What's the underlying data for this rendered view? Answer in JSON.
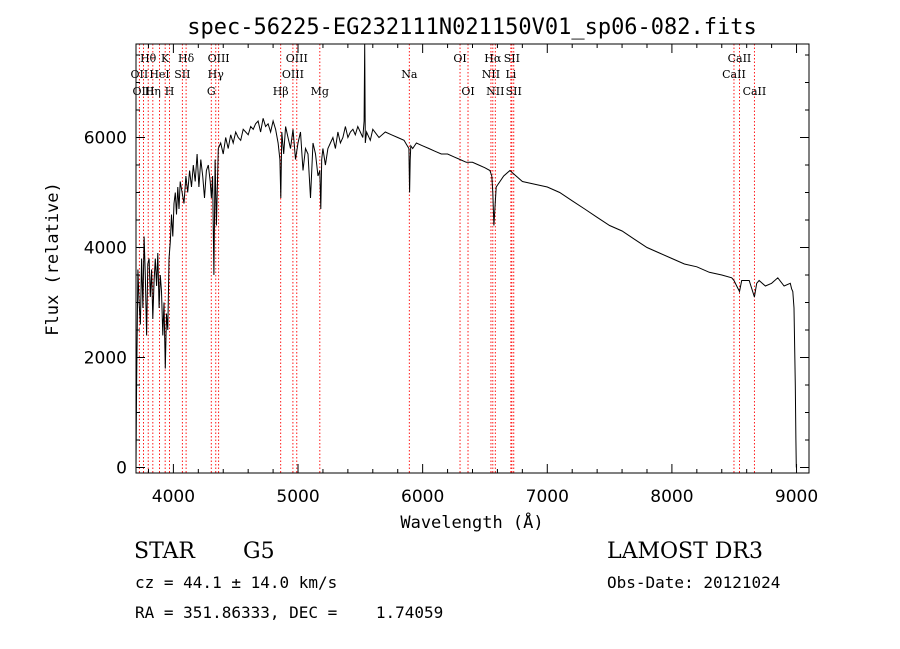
{
  "chart_data": {
    "type": "line",
    "title": "spec-56225-EG232111N021150V01_sp06-082.fits",
    "xlabel": "Wavelength (Å)",
    "ylabel": "Flux (relative)",
    "xlim": [
      3700,
      9100
    ],
    "ylim": [
      -100,
      7700
    ],
    "x_ticks": [
      4000,
      5000,
      6000,
      7000,
      8000,
      9000
    ],
    "x_tick_labels": [
      "4000",
      "5000",
      "6000",
      "7000",
      "8000",
      "9000"
    ],
    "y_ticks": [
      0,
      2000,
      4000,
      6000
    ],
    "y_tick_labels": [
      "0",
      "2000",
      "4000",
      "6000"
    ],
    "series": [
      {
        "name": "flux",
        "x": [
          3700,
          3705,
          3715,
          3725,
          3735,
          3745,
          3755,
          3765,
          3775,
          3785,
          3795,
          3805,
          3815,
          3825,
          3835,
          3845,
          3855,
          3865,
          3875,
          3885,
          3895,
          3905,
          3915,
          3925,
          3935,
          3945,
          3955,
          3965,
          3975,
          3985,
          3995,
          4005,
          4015,
          4025,
          4035,
          4045,
          4055,
          4070,
          4085,
          4100,
          4115,
          4130,
          4145,
          4160,
          4175,
          4190,
          4205,
          4220,
          4235,
          4250,
          4265,
          4280,
          4295,
          4305,
          4315,
          4325,
          4335,
          4345,
          4360,
          4380,
          4400,
          4420,
          4440,
          4460,
          4480,
          4500,
          4520,
          4540,
          4560,
          4580,
          4600,
          4620,
          4640,
          4660,
          4680,
          4700,
          4720,
          4740,
          4760,
          4780,
          4800,
          4820,
          4840,
          4855,
          4862,
          4870,
          4885,
          4900,
          4920,
          4940,
          4960,
          4980,
          5000,
          5020,
          5040,
          5060,
          5080,
          5100,
          5120,
          5140,
          5160,
          5175,
          5183,
          5190,
          5200,
          5220,
          5240,
          5260,
          5280,
          5300,
          5320,
          5340,
          5360,
          5380,
          5400,
          5420,
          5440,
          5460,
          5480,
          5500,
          5520,
          5530,
          5535,
          5540,
          5550,
          5560,
          5580,
          5600,
          5650,
          5700,
          5750,
          5800,
          5850,
          5890,
          5895,
          5900,
          5905,
          5920,
          5950,
          6000,
          6050,
          6100,
          6150,
          6200,
          6250,
          6300,
          6350,
          6400,
          6450,
          6500,
          6540,
          6555,
          6563,
          6572,
          6590,
          6650,
          6700,
          6750,
          6800,
          6900,
          7000,
          7100,
          7200,
          7300,
          7400,
          7500,
          7600,
          7700,
          7800,
          7900,
          8000,
          8100,
          8200,
          8300,
          8400,
          8480,
          8498,
          8520,
          8542,
          8560,
          8620,
          8662,
          8680,
          8700,
          8750,
          8800,
          8850,
          8900,
          8950,
          8960,
          8970,
          8980,
          8990,
          8995,
          8998
        ],
        "y": [
          0,
          1500,
          3600,
          3000,
          2600,
          3800,
          2900,
          4200,
          3500,
          2400,
          3700,
          3800,
          3100,
          3600,
          2700,
          3400,
          3800,
          3300,
          3900,
          2900,
          3500,
          3200,
          2400,
          3000,
          1800,
          2800,
          2500,
          3800,
          4100,
          4600,
          4200,
          4800,
          5000,
          4600,
          5100,
          4700,
          5200,
          5000,
          4800,
          5300,
          5000,
          5400,
          5100,
          5500,
          5200,
          5700,
          5100,
          5600,
          5300,
          4900,
          5400,
          5500,
          5200,
          4900,
          5300,
          3500,
          5600,
          4400,
          5800,
          5900,
          5700,
          6000,
          5800,
          6050,
          5900,
          6100,
          6000,
          5950,
          6150,
          6100,
          6050,
          6200,
          6150,
          6250,
          6300,
          6100,
          6350,
          6200,
          6250,
          6100,
          6300,
          6150,
          5900,
          5600,
          4900,
          6100,
          5700,
          6200,
          6000,
          5800,
          6150,
          5600,
          5900,
          6100,
          5400,
          5800,
          5700,
          4900,
          5900,
          5700,
          5300,
          5400,
          4700,
          5600,
          5800,
          5500,
          5800,
          5900,
          6000,
          5800,
          6100,
          5900,
          6000,
          6200,
          6000,
          6100,
          6150,
          6050,
          6200,
          6100,
          6000,
          6300,
          7700,
          5900,
          6100,
          6050,
          5950,
          6150,
          6000,
          6100,
          6050,
          6000,
          5950,
          5800,
          5000,
          5600,
          5850,
          5800,
          5900,
          5850,
          5800,
          5750,
          5700,
          5700,
          5650,
          5600,
          5550,
          5550,
          5500,
          5450,
          5400,
          5300,
          5000,
          4400,
          5100,
          5300,
          5400,
          5300,
          5200,
          5150,
          5100,
          5000,
          4850,
          4700,
          4550,
          4400,
          4300,
          4150,
          4000,
          3900,
          3800,
          3700,
          3650,
          3550,
          3500,
          3450,
          3400,
          3300,
          3200,
          3400,
          3400,
          3100,
          3350,
          3400,
          3300,
          3350,
          3450,
          3300,
          3350,
          3250,
          3200,
          2900,
          1500,
          500,
          0
        ]
      }
    ],
    "lines": [
      {
        "label": "Hθ",
        "wavelength": 3798,
        "row": 1
      },
      {
        "label": "OII",
        "wavelength": 3727,
        "row": 2
      },
      {
        "label": "OIII",
        "wavelength": 3760,
        "row": 3
      },
      {
        "label": "Hη",
        "wavelength": 3835,
        "row": 3
      },
      {
        "label": "K",
        "wavelength": 3934,
        "row": 1
      },
      {
        "label": "HeI",
        "wavelength": 3889,
        "row": 2
      },
      {
        "label": "H",
        "wavelength": 3969,
        "row": 3
      },
      {
        "label": "Hδ",
        "wavelength": 4102,
        "row": 1
      },
      {
        "label": "SII",
        "wavelength": 4072,
        "row": 2
      },
      {
        "label": "OIII",
        "wavelength": 4363,
        "row": 1
      },
      {
        "label": "Hγ",
        "wavelength": 4340,
        "row": 2
      },
      {
        "label": "G",
        "wavelength": 4304,
        "row": 3
      },
      {
        "label": "OIII",
        "wavelength": 4990,
        "row": 1
      },
      {
        "label": "OIII",
        "wavelength": 4959,
        "row": 2
      },
      {
        "label": "Hβ",
        "wavelength": 4861,
        "row": 3
      },
      {
        "label": "Mg",
        "wavelength": 5175,
        "row": 3
      },
      {
        "label": "Na",
        "wavelength": 5893,
        "row": 2
      },
      {
        "label": "OI",
        "wavelength": 6300,
        "row": 1
      },
      {
        "label": "OI",
        "wavelength": 6364,
        "row": 3
      },
      {
        "label": "Hα",
        "wavelength": 6563,
        "row": 1
      },
      {
        "label": "SII",
        "wavelength": 6716,
        "row": 1
      },
      {
        "label": "NII",
        "wavelength": 6548,
        "row": 2
      },
      {
        "label": "Li",
        "wavelength": 6708,
        "row": 2
      },
      {
        "label": "NII",
        "wavelength": 6583,
        "row": 3
      },
      {
        "label": "SII",
        "wavelength": 6731,
        "row": 3
      },
      {
        "label": "CaII",
        "wavelength": 8542,
        "row": 1
      },
      {
        "label": "CaII",
        "wavelength": 8498,
        "row": 2
      },
      {
        "label": "CaII",
        "wavelength": 8662,
        "row": 3
      }
    ]
  },
  "info": {
    "class": "STAR",
    "subclass": "G5",
    "survey": "LAMOST DR3",
    "cz": "cz = 44.1 ± 14.0 km/s",
    "obs_date": "Obs-Date: 20121024",
    "coords": "RA = 351.86333, DEC =    1.74059"
  },
  "colors": {
    "line_marker": "#ff0000",
    "spectrum": "#000000"
  }
}
